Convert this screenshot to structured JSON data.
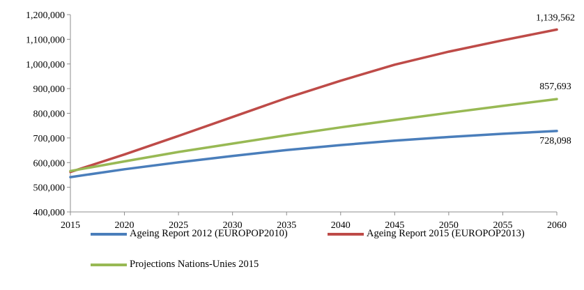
{
  "chart_data": {
    "type": "line",
    "title": "",
    "xlabel": "",
    "ylabel": "",
    "x": [
      2015,
      2020,
      2025,
      2030,
      2035,
      2040,
      2045,
      2050,
      2055,
      2060
    ],
    "xlim": [
      2015,
      2060
    ],
    "ylim": [
      400000,
      1200000
    ],
    "yticks": [
      400000,
      500000,
      600000,
      700000,
      800000,
      900000,
      1000000,
      1100000,
      1200000
    ],
    "ytick_labels": [
      "400,000",
      "500,000",
      "600,000",
      "700,000",
      "800,000",
      "900,000",
      "1,000,000",
      "1,100,000",
      "1,200,000"
    ],
    "xtick_labels": [
      "2015",
      "2020",
      "2025",
      "2030",
      "2035",
      "2040",
      "2045",
      "2050",
      "2055",
      "2060"
    ],
    "grid": false,
    "legend_position": "bottom",
    "series": [
      {
        "name": "Ageing Report 2012 (EUROPOP2010)",
        "color": "#4a7ebb",
        "values": [
          541000,
          573000,
          601000,
          627000,
          651000,
          671000,
          689000,
          704000,
          717000,
          728098
        ],
        "end_label": "728,098"
      },
      {
        "name": "Ageing Report 2015 (EUROPOP2013)",
        "color": "#be4b48",
        "values": [
          562000,
          633000,
          708000,
          785000,
          862000,
          932000,
          997000,
          1050000,
          1096000,
          1139562
        ],
        "end_label": "1,139,562"
      },
      {
        "name": "Projections Nations-Unies 2015",
        "color": "#98b954",
        "values": [
          566000,
          605000,
          643000,
          677000,
          711000,
          743000,
          773000,
          802000,
          830000,
          857693
        ],
        "end_label": "857,693"
      }
    ]
  }
}
